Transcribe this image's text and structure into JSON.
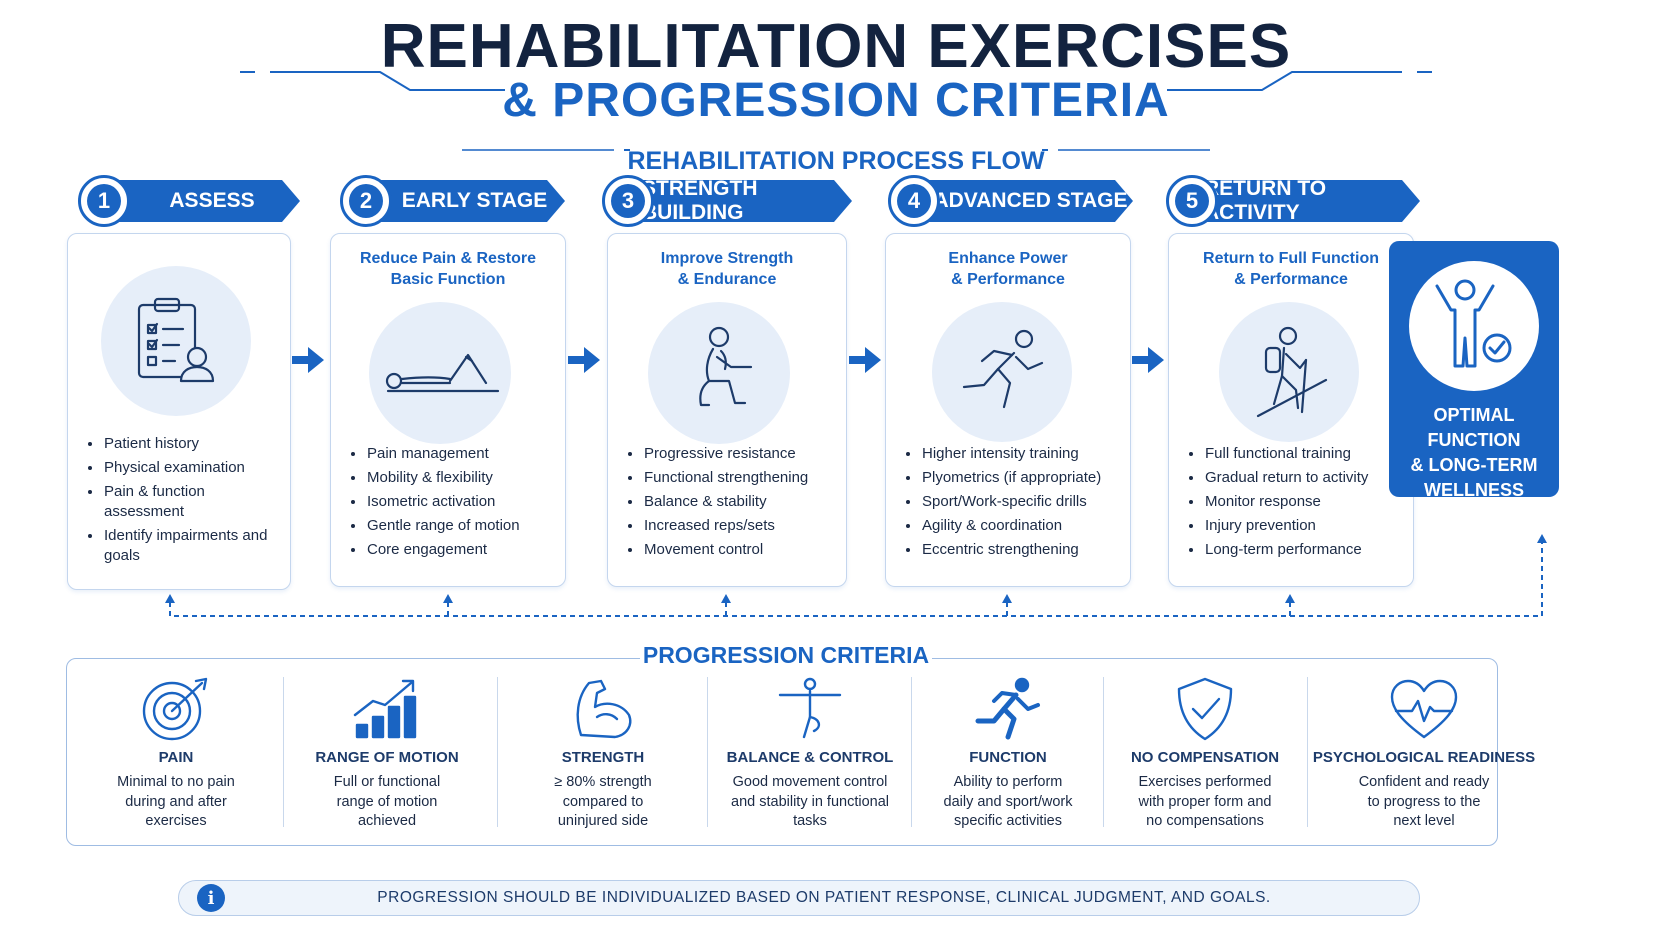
{
  "title": {
    "line1": "REHABILITATION EXERCISES",
    "line2": "& PROGRESSION CRITERIA"
  },
  "subtitle": "REHABILITATION PROCESS FLOW",
  "stages": [
    {
      "number": "1",
      "name": "ASSESS",
      "sub_lines": [],
      "icon": "clipboard-checklist-icon",
      "bullets": [
        "Patient history",
        "Physical examination",
        "Pain & function assessment",
        "Identify impairments and goals"
      ]
    },
    {
      "number": "2",
      "name": "EARLY STAGE",
      "sub_lines": [
        "Reduce Pain & Restore",
        "Basic Function"
      ],
      "icon": "lying-stretch-icon",
      "bullets": [
        "Pain management",
        "Mobility & flexibility",
        "Isometric activation",
        "Gentle range of motion",
        "Core engagement"
      ]
    },
    {
      "number": "3",
      "name": "STRENGTH BUILDING",
      "sub_lines": [
        "Improve Strength",
        "& Endurance"
      ],
      "icon": "squat-icon",
      "bullets": [
        "Progressive resistance",
        "Functional strengthening",
        "Balance & stability",
        "Increased reps/sets",
        "Movement control"
      ]
    },
    {
      "number": "4",
      "name": "ADVANCED STAGE",
      "sub_lines": [
        "Enhance Power",
        "& Performance"
      ],
      "icon": "running-icon",
      "bullets": [
        "Higher intensity training",
        "Plyometrics (if appropriate)",
        "Sport/Work-specific drills",
        "Agility & coordination",
        "Eccentric strengthening"
      ]
    },
    {
      "number": "5",
      "name": "RETURN TO ACTIVITY",
      "sub_lines": [
        "Return to Full Function",
        "& Performance"
      ],
      "icon": "hiker-icon",
      "bullets": [
        "Full functional training",
        "Gradual return to activity",
        "Monitor response",
        "Injury prevention",
        "Long-term performance"
      ]
    }
  ],
  "outcome": {
    "lines": [
      "OPTIMAL FUNCTION",
      "& LONG-TERM",
      "WELLNESS"
    ],
    "icon": "person-check-icon"
  },
  "criteria_title": "PROGRESSION CRITERIA",
  "criteria": [
    {
      "name": "PAIN",
      "desc_lines": [
        "Minimal to no pain",
        "during and after",
        "exercises"
      ],
      "icon": "target-icon"
    },
    {
      "name": "RANGE OF MOTION",
      "desc_lines": [
        "Full or functional",
        "range of motion",
        "achieved"
      ],
      "icon": "bar-chart-up-icon"
    },
    {
      "name": "STRENGTH",
      "desc_lines": [
        "≥ 80% strength",
        "compared to",
        "uninjured side"
      ],
      "icon": "flexed-arm-icon"
    },
    {
      "name": "BALANCE & CONTROL",
      "desc_lines": [
        "Good movement control",
        "and stability in functional",
        "tasks"
      ],
      "icon": "balance-figure-icon"
    },
    {
      "name": "FUNCTION",
      "desc_lines": [
        "Ability to perform",
        "daily and sport/work",
        "specific activities"
      ],
      "icon": "runner-icon"
    },
    {
      "name": "NO COMPENSATION",
      "desc_lines": [
        "Exercises performed",
        "with proper form and",
        "no compensations"
      ],
      "icon": "shield-check-icon"
    },
    {
      "name": "PSYCHOLOGICAL READINESS",
      "desc_lines": [
        "Confident and ready",
        "to progress to the",
        "next level"
      ],
      "icon": "heart-pulse-icon"
    }
  ],
  "footer": {
    "icon": "info-icon",
    "info_glyph": "i",
    "text": "PROGRESSION SHOULD BE INDIVIDUALIZED BASED ON PATIENT RESPONSE, CLINICAL JUDGMENT, AND GOALS."
  },
  "colors": {
    "primary": "#1a64c2",
    "dark": "#13233f",
    "icon_bg": "#e6eef9"
  }
}
